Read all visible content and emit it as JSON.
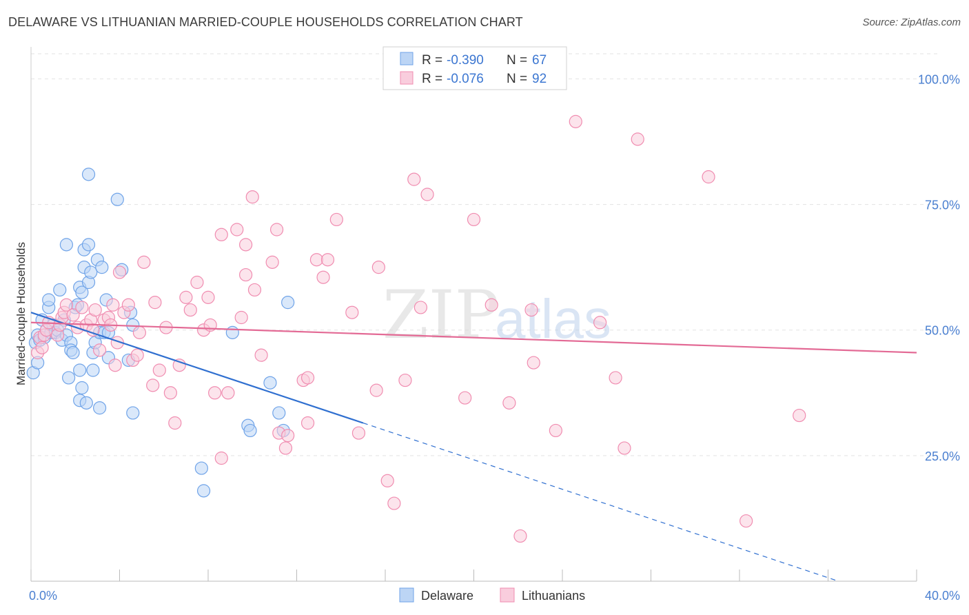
{
  "title": "DELAWARE VS LITHUANIAN MARRIED-COUPLE HOUSEHOLDS CORRELATION CHART",
  "source": "Source: ZipAtlas.com",
  "watermark": {
    "zip": "ZIP",
    "atlas": "atlas"
  },
  "legend": {
    "r_label": "R =",
    "n_label": "N =",
    "rows": [
      {
        "name": "Delaware",
        "r": "-0.390",
        "n": "67",
        "color": "#6fa3e8",
        "fill": "#bcd5f5"
      },
      {
        "name": "Lithuanians",
        "r": "-0.076",
        "n": "92",
        "color": "#f08cb0",
        "fill": "#f9cddd"
      }
    ]
  },
  "bottom_legend": [
    "Delaware",
    "Lithuanians"
  ],
  "chart_data": {
    "type": "scatter",
    "title": "DELAWARE VS LITHUANIAN MARRIED-COUPLE HOUSEHOLDS CORRELATION CHART",
    "xlabel": "",
    "ylabel": "Married-couple Households",
    "xlim": [
      0,
      40
    ],
    "ylim": [
      0,
      105
    ],
    "x_tick_labels": [
      "0.0%",
      "40.0%"
    ],
    "y_ticks": [
      25,
      50,
      75,
      100
    ],
    "y_tick_labels": [
      "25.0%",
      "50.0%",
      "75.0%",
      "100.0%"
    ],
    "grid": "horizontal dashed",
    "legend_position": "top-center",
    "series": [
      {
        "name": "Delaware",
        "color": "#6fa3e8",
        "fill": "#bcd5f5",
        "trend": {
          "x": [
            0,
            15
          ],
          "y": [
            53.5,
            31.5
          ],
          "dashed_to_x": 36.5,
          "color": "#2f6fd0"
        },
        "points": [
          [
            0.1,
            41.5
          ],
          [
            0.2,
            47.5
          ],
          [
            0.3,
            43.5
          ],
          [
            0.3,
            49
          ],
          [
            0.4,
            48
          ],
          [
            0.5,
            52
          ],
          [
            0.6,
            48.5
          ],
          [
            0.7,
            50
          ],
          [
            0.8,
            54.5
          ],
          [
            0.8,
            56
          ],
          [
            0.9,
            49.5
          ],
          [
            1.0,
            51
          ],
          [
            1.1,
            49.5
          ],
          [
            1.2,
            50
          ],
          [
            1.3,
            58
          ],
          [
            1.4,
            48
          ],
          [
            1.5,
            52
          ],
          [
            1.6,
            49
          ],
          [
            1.7,
            40.5
          ],
          [
            1.8,
            47.5
          ],
          [
            1.6,
            67
          ],
          [
            1.8,
            46
          ],
          [
            1.9,
            45.5
          ],
          [
            2.0,
            54.5
          ],
          [
            2.1,
            55
          ],
          [
            2.2,
            58.5
          ],
          [
            2.3,
            57.5
          ],
          [
            2.2,
            42
          ],
          [
            2.3,
            38.5
          ],
          [
            2.2,
            36
          ],
          [
            2.4,
            66
          ],
          [
            2.4,
            62.5
          ],
          [
            2.5,
            35.5
          ],
          [
            2.6,
            81
          ],
          [
            2.6,
            59.5
          ],
          [
            2.6,
            67
          ],
          [
            2.7,
            61.5
          ],
          [
            2.8,
            42
          ],
          [
            2.8,
            45.5
          ],
          [
            2.9,
            47.5
          ],
          [
            3.0,
            64
          ],
          [
            3.1,
            34.5
          ],
          [
            3.1,
            49.5
          ],
          [
            3.2,
            62.5
          ],
          [
            3.3,
            49.5
          ],
          [
            3.4,
            56
          ],
          [
            3.5,
            49.5
          ],
          [
            3.5,
            44.5
          ],
          [
            3.9,
            76
          ],
          [
            4.1,
            62
          ],
          [
            4.4,
            44
          ],
          [
            4.5,
            53.5
          ],
          [
            4.6,
            51
          ],
          [
            4.6,
            33.5
          ],
          [
            7.7,
            22.5
          ],
          [
            7.8,
            18
          ],
          [
            9.1,
            49.5
          ],
          [
            9.8,
            31
          ],
          [
            9.9,
            30
          ],
          [
            10.8,
            39.5
          ],
          [
            11.2,
            33.5
          ],
          [
            11.4,
            30
          ],
          [
            11.6,
            55.5
          ]
        ]
      },
      {
        "name": "Lithuanians",
        "color": "#f08cb0",
        "fill": "#f9cddd",
        "trend": {
          "x": [
            0,
            40
          ],
          "y": [
            51.5,
            45.5
          ],
          "color": "#e36a95"
        },
        "points": [
          [
            0.3,
            45.5
          ],
          [
            0.4,
            48.5
          ],
          [
            0.5,
            46.5
          ],
          [
            0.6,
            49
          ],
          [
            0.7,
            50
          ],
          [
            0.8,
            51.5
          ],
          [
            1.2,
            49
          ],
          [
            1.3,
            51
          ],
          [
            1.4,
            52.5
          ],
          [
            1.5,
            53.5
          ],
          [
            1.6,
            55
          ],
          [
            1.9,
            53
          ],
          [
            2.1,
            50.5
          ],
          [
            2.3,
            54.5
          ],
          [
            2.5,
            51
          ],
          [
            2.7,
            52
          ],
          [
            2.8,
            50
          ],
          [
            2.9,
            54
          ],
          [
            3.1,
            46
          ],
          [
            3.3,
            52
          ],
          [
            3.5,
            52.5
          ],
          [
            3.6,
            51
          ],
          [
            3.7,
            55
          ],
          [
            3.8,
            43
          ],
          [
            3.9,
            47.5
          ],
          [
            4.0,
            61.5
          ],
          [
            4.2,
            53.5
          ],
          [
            4.4,
            55
          ],
          [
            4.6,
            44
          ],
          [
            4.8,
            45
          ],
          [
            4.9,
            49.5
          ],
          [
            5.1,
            63.5
          ],
          [
            5.5,
            39
          ],
          [
            5.6,
            55.5
          ],
          [
            5.8,
            42
          ],
          [
            6.1,
            50.5
          ],
          [
            6.3,
            37.5
          ],
          [
            6.5,
            31.5
          ],
          [
            6.7,
            43
          ],
          [
            7.0,
            56.5
          ],
          [
            7.2,
            54
          ],
          [
            7.5,
            59.5
          ],
          [
            7.8,
            50
          ],
          [
            8.0,
            56.5
          ],
          [
            8.1,
            51
          ],
          [
            8.3,
            37.5
          ],
          [
            8.6,
            69
          ],
          [
            8.6,
            24.5
          ],
          [
            8.9,
            37.5
          ],
          [
            9.3,
            70
          ],
          [
            9.5,
            52.5
          ],
          [
            9.7,
            61
          ],
          [
            9.7,
            67
          ],
          [
            10.0,
            76.5
          ],
          [
            10.1,
            58
          ],
          [
            10.4,
            45
          ],
          [
            10.9,
            63.5
          ],
          [
            11.1,
            70
          ],
          [
            11.2,
            29.5
          ],
          [
            11.5,
            26.5
          ],
          [
            11.6,
            29
          ],
          [
            12.3,
            40
          ],
          [
            12.5,
            40.5
          ],
          [
            12.5,
            31.5
          ],
          [
            12.9,
            64
          ],
          [
            13.2,
            60.5
          ],
          [
            13.4,
            64
          ],
          [
            13.8,
            72
          ],
          [
            14.5,
            53.5
          ],
          [
            14.8,
            29.5
          ],
          [
            15.6,
            38
          ],
          [
            15.7,
            62.5
          ],
          [
            16.1,
            20
          ],
          [
            16.4,
            15.5
          ],
          [
            16.9,
            40
          ],
          [
            17.3,
            80
          ],
          [
            17.6,
            54.5
          ],
          [
            17.9,
            77
          ],
          [
            19.6,
            36.5
          ],
          [
            20.0,
            72
          ],
          [
            20.8,
            55
          ],
          [
            21.6,
            35.5
          ],
          [
            22.1,
            9
          ],
          [
            22.6,
            54
          ],
          [
            22.7,
            43.5
          ],
          [
            23.7,
            30
          ],
          [
            24.6,
            91.5
          ],
          [
            25.7,
            51.5
          ],
          [
            26.4,
            40.5
          ],
          [
            26.8,
            26.5
          ],
          [
            27.4,
            88
          ],
          [
            30.6,
            80.5
          ],
          [
            32.3,
            12
          ],
          [
            34.7,
            33
          ]
        ]
      }
    ]
  }
}
